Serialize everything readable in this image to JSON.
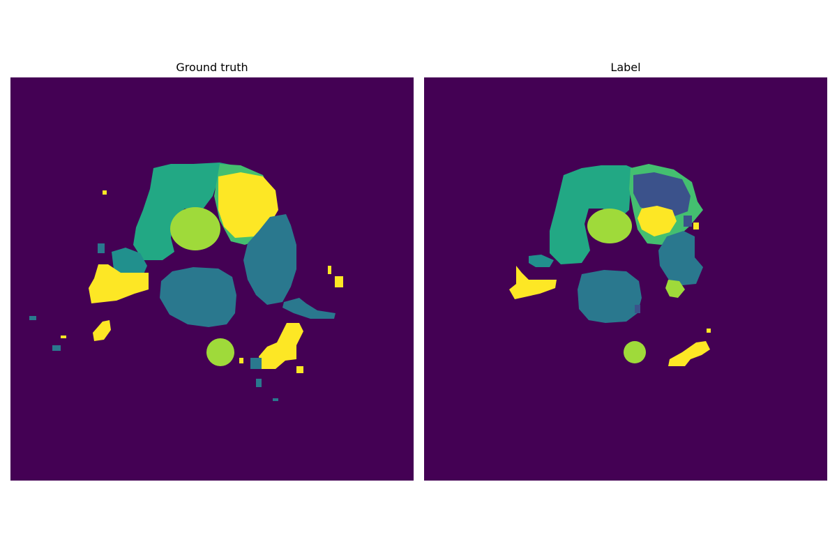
{
  "panels": {
    "left": {
      "title": "Ground truth"
    },
    "right": {
      "title": "Label"
    }
  },
  "colors": {
    "background": "#440154",
    "class_1": "#3b528b",
    "class_2": "#2a788e",
    "class_3": "#21908d",
    "class_4": "#22a884",
    "class_5": "#44bf70",
    "class_6": "#9fda3a",
    "class_7": "#fde725"
  }
}
